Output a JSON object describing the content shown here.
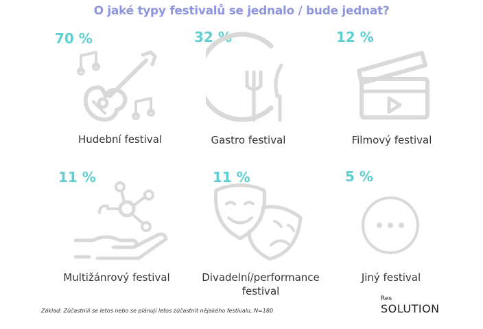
{
  "title": "O jaké typy festivalů se jednalo / bude jednat?",
  "colors": {
    "title": "#8f96e0",
    "percent": "#5ecfd0",
    "icon": "#d9d9d9"
  },
  "items": [
    {
      "percent": "70 %",
      "label": "Hudební festival",
      "icon": "guitar-music-icon"
    },
    {
      "percent": "32 %",
      "label": "Gastro festival",
      "icon": "plate-cutlery-icon"
    },
    {
      "percent": "12 %",
      "label": "Filmový festival",
      "icon": "clapperboard-icon"
    },
    {
      "percent": "11 %",
      "label": "Multižánrový festival",
      "icon": "hand-molecule-icon"
    },
    {
      "percent": "11 %",
      "label": "Divadelní/performance festival",
      "icon": "theater-masks-icon"
    },
    {
      "percent": "5 %",
      "label": "Jiný festival",
      "icon": "more-dots-icon"
    }
  ],
  "footnote": "Základ: Zúčastnili se letos nebo se plánují letos zúčastnit nějakého festivalu, N=180",
  "logo": {
    "top": "Res",
    "main": "SOLUTION"
  }
}
